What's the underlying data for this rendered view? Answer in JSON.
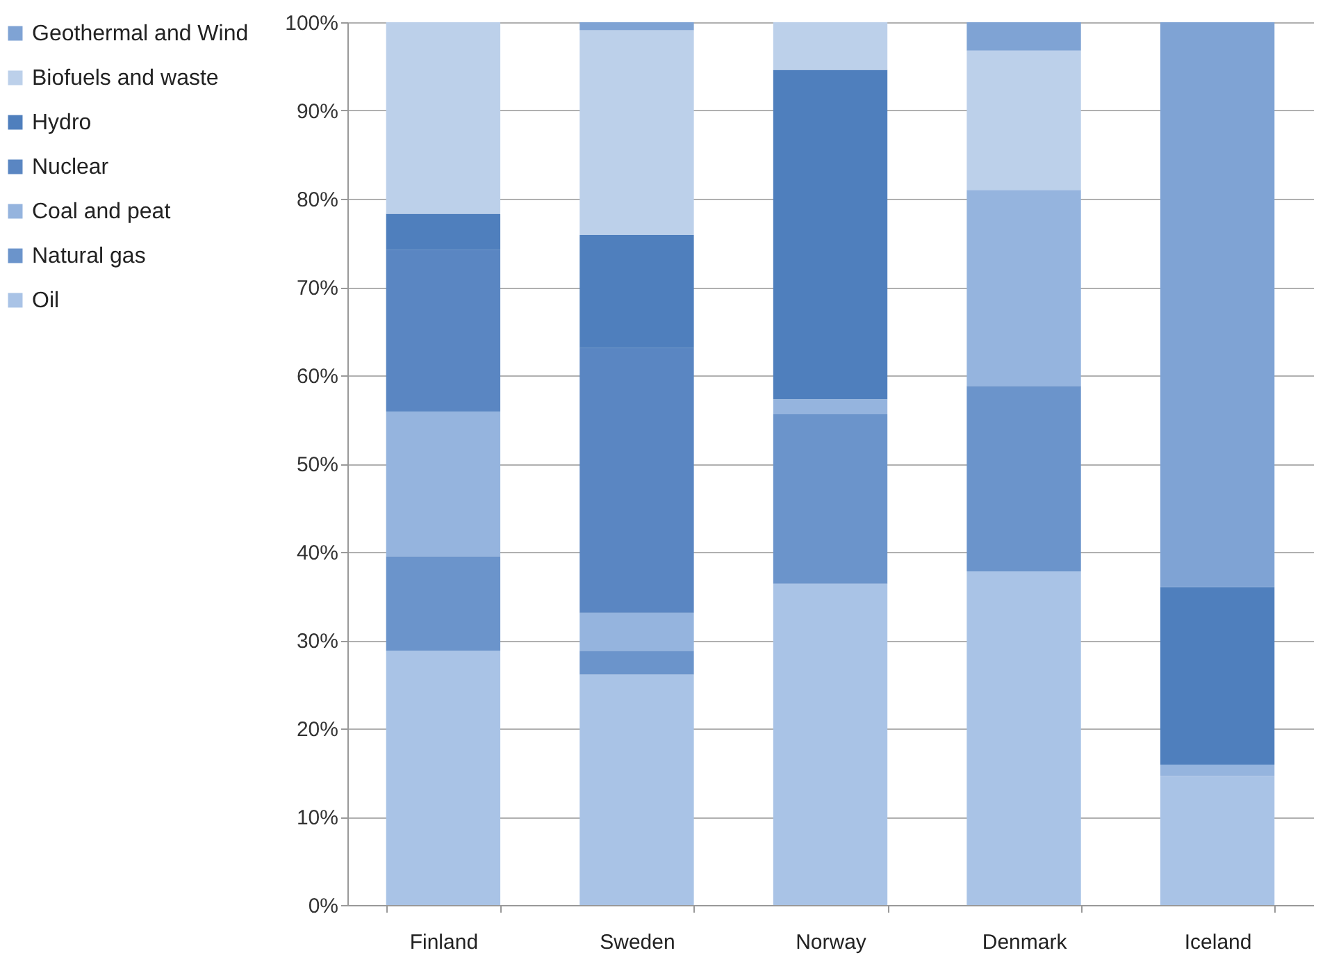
{
  "chart_data": {
    "type": "bar",
    "stacked": true,
    "categories": [
      "Finland",
      "Sweden",
      "Norway",
      "Denmark",
      "Iceland"
    ],
    "series": [
      {
        "name": "Oil",
        "color": "#a9c3e6",
        "values": [
          28.8,
          26.1,
          36.4,
          37.8,
          14.6
        ]
      },
      {
        "name": "Natural gas",
        "color": "#6b94cb",
        "values": [
          10.7,
          2.7,
          19.2,
          21.0,
          0
        ]
      },
      {
        "name": "Coal and peat",
        "color": "#95b4de",
        "values": [
          16.4,
          4.3,
          1.7,
          22.2,
          1.3
        ]
      },
      {
        "name": "Nuclear",
        "color": "#5a86c2",
        "values": [
          18.3,
          30.0,
          0,
          0,
          0
        ]
      },
      {
        "name": "Hydro",
        "color": "#4f7fbd",
        "values": [
          4.1,
          12.8,
          37.3,
          0,
          20.1
        ]
      },
      {
        "name": "Biofuels and waste",
        "color": "#bcd0ea",
        "values": [
          21.7,
          23.2,
          5.4,
          15.8,
          0
        ]
      },
      {
        "name": "Geothermal and Wind",
        "color": "#7fa3d4",
        "values": [
          0,
          0.9,
          0,
          3.2,
          64.0
        ]
      }
    ],
    "ylim": [
      0,
      100
    ],
    "yticks": [
      {
        "value": 0,
        "label": "0%"
      },
      {
        "value": 10,
        "label": "10%"
      },
      {
        "value": 20,
        "label": "20%"
      },
      {
        "value": 30,
        "label": "30%"
      },
      {
        "value": 40,
        "label": "40%"
      },
      {
        "value": 50,
        "label": "50%"
      },
      {
        "value": 60,
        "label": "60%"
      },
      {
        "value": 70,
        "label": "70%"
      },
      {
        "value": 80,
        "label": "80%"
      },
      {
        "value": 90,
        "label": "90%"
      },
      {
        "value": 100,
        "label": "100%"
      }
    ],
    "grid": "y",
    "legend": "left"
  }
}
